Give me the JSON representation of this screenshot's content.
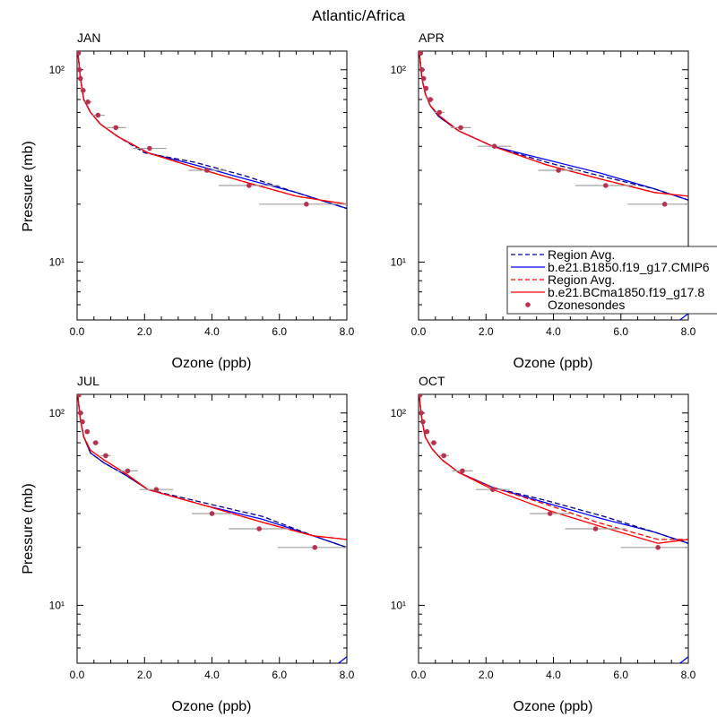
{
  "figure": {
    "title": "Atlantic/Africa"
  },
  "colors": {
    "model1": "#0000ff",
    "model2": "#ff0000",
    "obs": "#b8324f",
    "errbar": "#a0a0a0"
  },
  "legend": {
    "placement": "right of APR panel",
    "entries": [
      {
        "label": "Region Avg.",
        "style": "dashed",
        "color": "#00008b"
      },
      {
        "label": "b.e21.B1850.f19_g17.CMIP6",
        "style": "solid",
        "color": "#0000ff"
      },
      {
        "label": "Region Avg.",
        "style": "dashed",
        "color": "#ff0000"
      },
      {
        "label": "b.e21.BCma1850.f19_g17.8",
        "style": "solid",
        "color": "#ff0000"
      },
      {
        "label": "Ozonesondes",
        "style": "marker",
        "color": "#b8324f"
      }
    ]
  },
  "chart_data": [
    {
      "type": "line",
      "title": "JAN",
      "xlabel": "Ozone (ppb)",
      "ylabel": "Pressure (mb)",
      "xlim": [
        0,
        8
      ],
      "ylim": [
        125,
        5
      ],
      "yscale": "log-reversed",
      "xticks": [
        "0.0",
        "2.0",
        "4.0",
        "6.0",
        "8.0"
      ],
      "yticks": [
        "10¹",
        "10²"
      ],
      "series": [
        {
          "name": "b.e21.B1850.f19_g17.CMIP6",
          "style": "solid",
          "color": "#0000ff",
          "x": [
            0.02,
            0.05,
            0.1,
            0.2,
            0.4,
            0.7,
            1.2,
            2.1,
            3.5,
            5.0,
            6.5,
            8.0
          ],
          "y": [
            125,
            110,
            90,
            70,
            60,
            52,
            45,
            37,
            32,
            27,
            23,
            19
          ]
        },
        {
          "name": "Region Avg.",
          "style": "dashed",
          "color": "#00008b",
          "x": [
            0.02,
            0.05,
            0.1,
            0.2,
            0.4,
            0.7,
            1.2,
            2.0,
            3.5,
            5.0,
            6.5,
            8.0
          ],
          "y": [
            125,
            110,
            90,
            70,
            60,
            52,
            45,
            37,
            33,
            28,
            23,
            19
          ]
        },
        {
          "name": "b.e21.BCma1850.f19_g17.8",
          "style": "solid",
          "color": "#ff0000",
          "x": [
            0.02,
            0.05,
            0.1,
            0.2,
            0.4,
            0.7,
            1.2,
            2.1,
            3.5,
            5.0,
            6.5,
            8.0
          ],
          "y": [
            125,
            110,
            90,
            70,
            60,
            52,
            45,
            37,
            31,
            26,
            22,
            20
          ]
        },
        {
          "name": "Region Avg.",
          "style": "dashed",
          "color": "#ff0000",
          "x": [
            0.02,
            0.05,
            0.1,
            0.2,
            0.4,
            0.7,
            1.2,
            2.1,
            3.5,
            5.0,
            6.5,
            8.0
          ],
          "y": [
            125,
            110,
            90,
            70,
            60,
            52,
            45,
            37,
            31,
            26,
            22,
            20
          ]
        },
        {
          "name": "Ozonesondes",
          "style": "marker",
          "color": "#b8324f",
          "x": [
            0.04,
            0.07,
            0.1,
            0.18,
            0.32,
            0.62,
            1.15,
            2.15,
            3.85,
            5.1,
            6.8
          ],
          "y": [
            122,
            100,
            90,
            78,
            68,
            58,
            50,
            39,
            30,
            25,
            20
          ],
          "xerr": [
            0.02,
            0.03,
            0.05,
            0.08,
            0.12,
            0.2,
            0.3,
            0.5,
            0.55,
            0.9,
            1.4
          ]
        }
      ]
    },
    {
      "type": "line",
      "title": "APR",
      "xlabel": "Ozone (ppb)",
      "ylabel": "",
      "xlim": [
        0,
        8
      ],
      "ylim": [
        125,
        5
      ],
      "yscale": "log-reversed",
      "xticks": [
        "0.0",
        "2.0",
        "4.0",
        "6.0",
        "8.0"
      ],
      "yticks": [
        "10¹",
        "10²"
      ],
      "series": [
        {
          "name": "b.e21.B1850.f19_g17.CMIP6",
          "style": "solid",
          "color": "#0000ff",
          "x": [
            0.02,
            0.05,
            0.1,
            0.2,
            0.35,
            0.6,
            1.2,
            2.2,
            3.8,
            5.4,
            7.0,
            8.0
          ],
          "y": [
            125,
            110,
            90,
            75,
            65,
            57,
            48,
            40,
            34,
            29,
            24,
            21
          ]
        },
        {
          "name": "Region Avg.",
          "style": "dashed",
          "color": "#00008b",
          "x": [
            0.02,
            0.05,
            0.1,
            0.2,
            0.35,
            0.6,
            1.2,
            2.2,
            3.8,
            5.4,
            7.0,
            8.0
          ],
          "y": [
            125,
            110,
            90,
            75,
            65,
            57,
            48,
            40,
            33,
            28,
            24,
            21
          ]
        },
        {
          "name": "b.e21.BCma1850.f19_g17.8",
          "style": "solid",
          "color": "#ff0000",
          "x": [
            0.02,
            0.05,
            0.1,
            0.2,
            0.35,
            0.6,
            1.2,
            2.2,
            3.8,
            5.4,
            7.0,
            8.0
          ],
          "y": [
            125,
            110,
            90,
            75,
            65,
            58,
            48,
            40,
            32,
            27,
            23,
            22
          ]
        },
        {
          "name": "Region Avg.",
          "style": "dashed",
          "color": "#ff0000",
          "x": [
            0.02,
            0.05,
            0.1,
            0.2,
            0.35,
            0.6,
            1.2,
            2.2,
            3.8,
            5.4,
            7.0,
            8.0
          ],
          "y": [
            125,
            110,
            90,
            75,
            65,
            58,
            48,
            40,
            32,
            27,
            23,
            22
          ]
        },
        {
          "name": "Ozonesondes",
          "style": "marker",
          "color": "#b8324f",
          "x": [
            0.06,
            0.1,
            0.15,
            0.22,
            0.35,
            0.62,
            1.25,
            2.25,
            4.15,
            5.55,
            7.3
          ],
          "y": [
            122,
            100,
            90,
            80,
            70,
            60,
            50,
            40,
            30,
            25,
            20
          ],
          "xerr": [
            0.02,
            0.03,
            0.05,
            0.07,
            0.1,
            0.15,
            0.3,
            0.5,
            0.6,
            0.9,
            1.1
          ]
        }
      ]
    },
    {
      "type": "line",
      "title": "JUL",
      "xlabel": "Ozone (ppb)",
      "ylabel": "Pressure (mb)",
      "xlim": [
        0,
        8
      ],
      "ylim": [
        125,
        5
      ],
      "yscale": "log-reversed",
      "xticks": [
        "0.0",
        "2.0",
        "4.0",
        "6.0",
        "8.0"
      ],
      "yticks": [
        "10¹",
        "10²"
      ],
      "series": [
        {
          "name": "b.e21.B1850.f19_g17.CMIP6",
          "style": "solid",
          "color": "#0000ff",
          "x": [
            0.02,
            0.05,
            0.1,
            0.2,
            0.4,
            0.8,
            1.4,
            2.1,
            3.8,
            5.5,
            7.0,
            8.0
          ],
          "y": [
            125,
            110,
            92,
            75,
            62,
            55,
            48,
            40,
            33,
            28,
            23,
            20
          ]
        },
        {
          "name": "Region Avg.",
          "style": "dashed",
          "color": "#00008b",
          "x": [
            0.02,
            0.05,
            0.1,
            0.2,
            0.4,
            0.8,
            1.4,
            2.1,
            3.8,
            5.5,
            7.0,
            8.0
          ],
          "y": [
            125,
            110,
            92,
            75,
            62,
            55,
            48,
            40,
            34,
            29,
            23,
            20
          ]
        },
        {
          "name": "b.e21.BCma1850.f19_g17.8",
          "style": "solid",
          "color": "#ff0000",
          "x": [
            0.02,
            0.05,
            0.1,
            0.2,
            0.4,
            0.8,
            1.4,
            2.1,
            3.8,
            5.5,
            7.0,
            8.0
          ],
          "y": [
            125,
            110,
            92,
            75,
            64,
            57,
            49,
            40,
            33,
            27,
            23,
            22
          ]
        },
        {
          "name": "Region Avg.",
          "style": "dashed",
          "color": "#ff0000",
          "x": [
            0.02,
            0.05,
            0.1,
            0.2,
            0.4,
            0.8,
            1.4,
            2.1,
            3.8,
            5.5,
            7.0,
            8.0
          ],
          "y": [
            125,
            110,
            92,
            75,
            64,
            57,
            49,
            40,
            33,
            27,
            23,
            22
          ]
        },
        {
          "name": "Ozonesondes",
          "style": "marker",
          "color": "#b8324f",
          "x": [
            0.05,
            0.1,
            0.16,
            0.3,
            0.55,
            0.85,
            1.5,
            2.35,
            4.0,
            5.4,
            7.05
          ],
          "y": [
            124,
            100,
            90,
            80,
            70,
            60,
            50,
            40,
            30,
            25,
            20
          ],
          "xerr": [
            0.02,
            0.03,
            0.05,
            0.07,
            0.1,
            0.15,
            0.3,
            0.5,
            0.6,
            0.9,
            1.1
          ]
        }
      ]
    },
    {
      "type": "line",
      "title": "OCT",
      "xlabel": "Ozone (ppb)",
      "ylabel": "",
      "xlim": [
        0,
        8
      ],
      "ylim": [
        125,
        5
      ],
      "yscale": "log-reversed",
      "xticks": [
        "0.0",
        "2.0",
        "4.0",
        "6.0",
        "8.0"
      ],
      "yticks": [
        "10¹",
        "10²"
      ],
      "series": [
        {
          "name": "b.e21.B1850.f19_g17.CMIP6",
          "style": "solid",
          "color": "#0000ff",
          "x": [
            0.02,
            0.05,
            0.1,
            0.2,
            0.4,
            0.7,
            1.2,
            2.2,
            3.8,
            5.5,
            7.0,
            8.0
          ],
          "y": [
            125,
            110,
            92,
            75,
            65,
            57,
            49,
            41,
            34,
            28,
            24,
            21
          ]
        },
        {
          "name": "Region Avg.",
          "style": "dashed",
          "color": "#00008b",
          "x": [
            0.02,
            0.05,
            0.1,
            0.2,
            0.4,
            0.7,
            1.2,
            2.2,
            3.8,
            5.5,
            7.0,
            8.0
          ],
          "y": [
            125,
            110,
            92,
            75,
            65,
            57,
            49,
            41,
            35,
            29,
            24,
            21
          ]
        },
        {
          "name": "b.e21.BCma1850.f19_g17.8",
          "style": "solid",
          "color": "#ff0000",
          "x": [
            0.02,
            0.05,
            0.1,
            0.2,
            0.4,
            0.7,
            1.2,
            2.2,
            3.9,
            5.3,
            7.1,
            8.0
          ],
          "y": [
            125,
            110,
            92,
            75,
            65,
            57,
            49,
            40,
            31,
            26,
            21,
            22
          ]
        },
        {
          "name": "Region Avg.",
          "style": "dashed",
          "color": "#ff0000",
          "x": [
            0.02,
            0.05,
            0.1,
            0.2,
            0.4,
            0.7,
            1.2,
            2.2,
            3.9,
            5.3,
            7.1,
            8.0
          ],
          "y": [
            125,
            110,
            92,
            75,
            65,
            57,
            49,
            41,
            33,
            27,
            22,
            22
          ]
        },
        {
          "name": "Ozonesondes",
          "style": "marker",
          "color": "#b8324f",
          "x": [
            0.04,
            0.08,
            0.13,
            0.25,
            0.45,
            0.75,
            1.3,
            2.2,
            3.9,
            5.25,
            7.1
          ],
          "y": [
            124,
            100,
            90,
            80,
            70,
            60,
            50,
            40,
            30,
            25,
            20
          ],
          "xerr": [
            0.02,
            0.03,
            0.05,
            0.07,
            0.1,
            0.15,
            0.3,
            0.5,
            0.6,
            0.9,
            1.1
          ]
        }
      ]
    }
  ]
}
